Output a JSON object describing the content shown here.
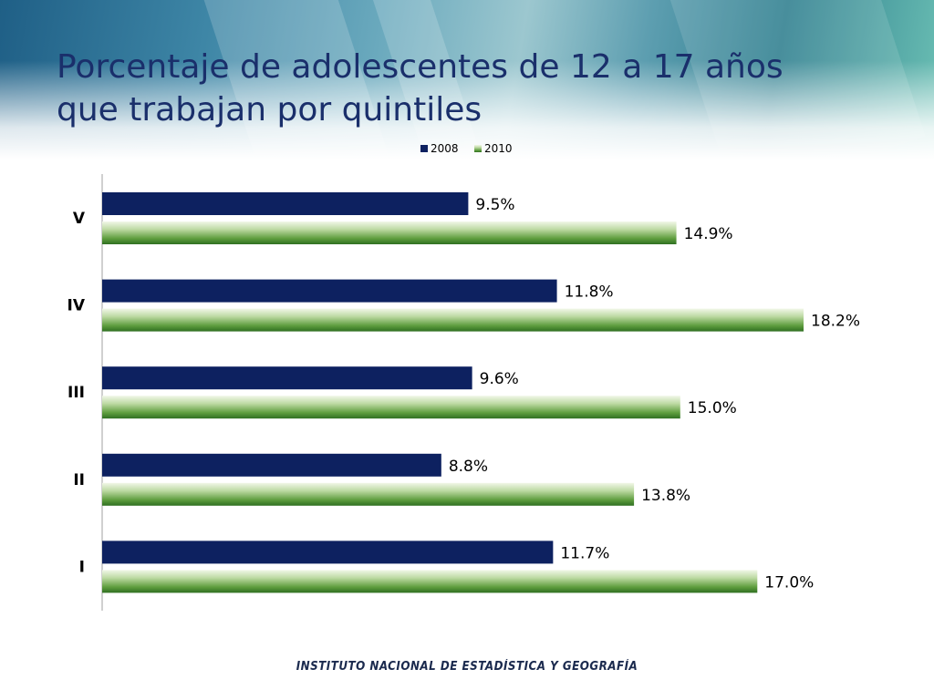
{
  "slide": {
    "title_line1": "Porcentaje de adolescentes de 12 a 17 años",
    "title_line2": "que trabajan por quintiles",
    "footer": "INSTITUTO NACIONAL  DE ESTADÍSTICA Y GEOGRAFÍA"
  },
  "chart_data": {
    "type": "bar",
    "orientation": "horizontal",
    "categories": [
      "V",
      "IV",
      "III",
      "II",
      "I"
    ],
    "series": [
      {
        "name": "2008",
        "values": [
          9.5,
          11.8,
          9.6,
          8.8,
          11.7
        ],
        "labels": [
          "9.5%",
          "11.8%",
          "9.6%",
          "8.8%",
          "11.7%"
        ],
        "color": "#0d2160"
      },
      {
        "name": "2010",
        "values": [
          14.9,
          18.2,
          15.0,
          13.8,
          17.0
        ],
        "labels": [
          "14.9%",
          "18.2%",
          "15.0%",
          "13.8%",
          "17.0%"
        ],
        "color": "#3f8a2c"
      }
    ],
    "xlim": [
      0,
      18.2
    ],
    "grid": false,
    "legend": "top-center"
  }
}
